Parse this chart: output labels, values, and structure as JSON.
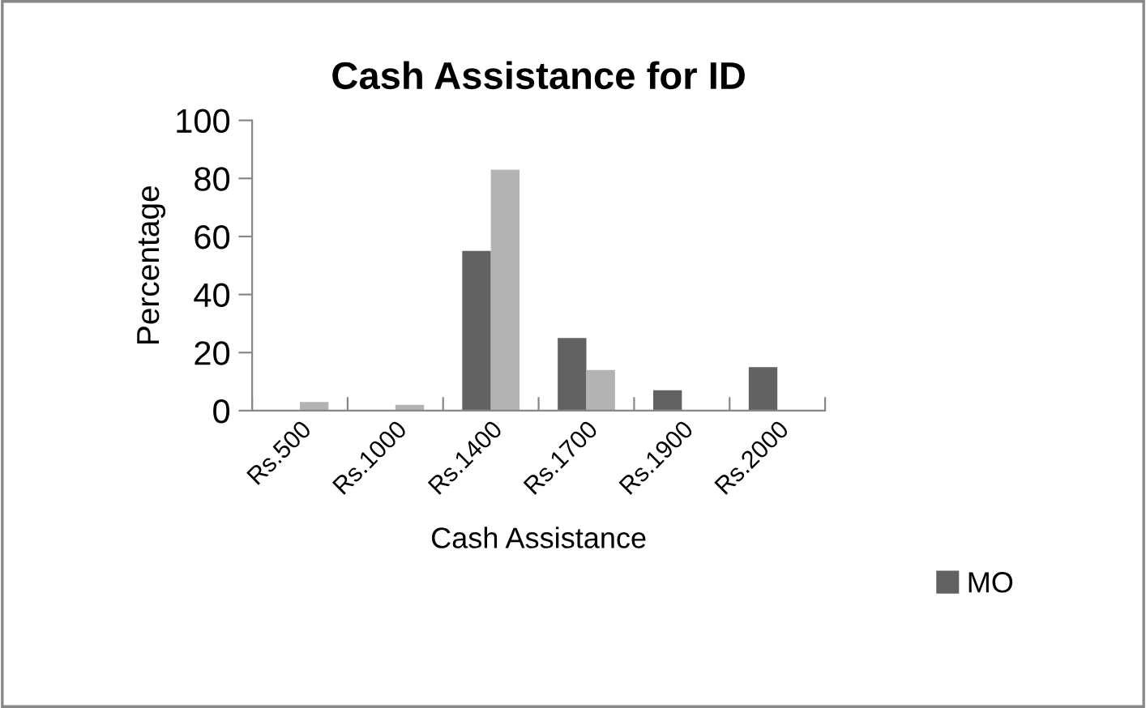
{
  "chart_data": {
    "type": "bar",
    "title": "Cash Assistance for ID",
    "xlabel": "Cash Assistance",
    "ylabel": "Percentage",
    "categories": [
      "Rs.500",
      "Rs.1000",
      "Rs.1400",
      "Rs.1700",
      "Rs.1900",
      "Rs.2000"
    ],
    "series": [
      {
        "name": "MO",
        "color": "#626262",
        "values": [
          0,
          0,
          55,
          25,
          7,
          15
        ]
      },
      {
        "color": "#b3b3b3",
        "values": [
          3,
          2,
          83,
          14,
          0,
          0
        ]
      }
    ],
    "ylim": [
      0,
      100
    ],
    "yticks": [
      0,
      20,
      40,
      60,
      80,
      100
    ],
    "grid": false,
    "legend": "right"
  }
}
